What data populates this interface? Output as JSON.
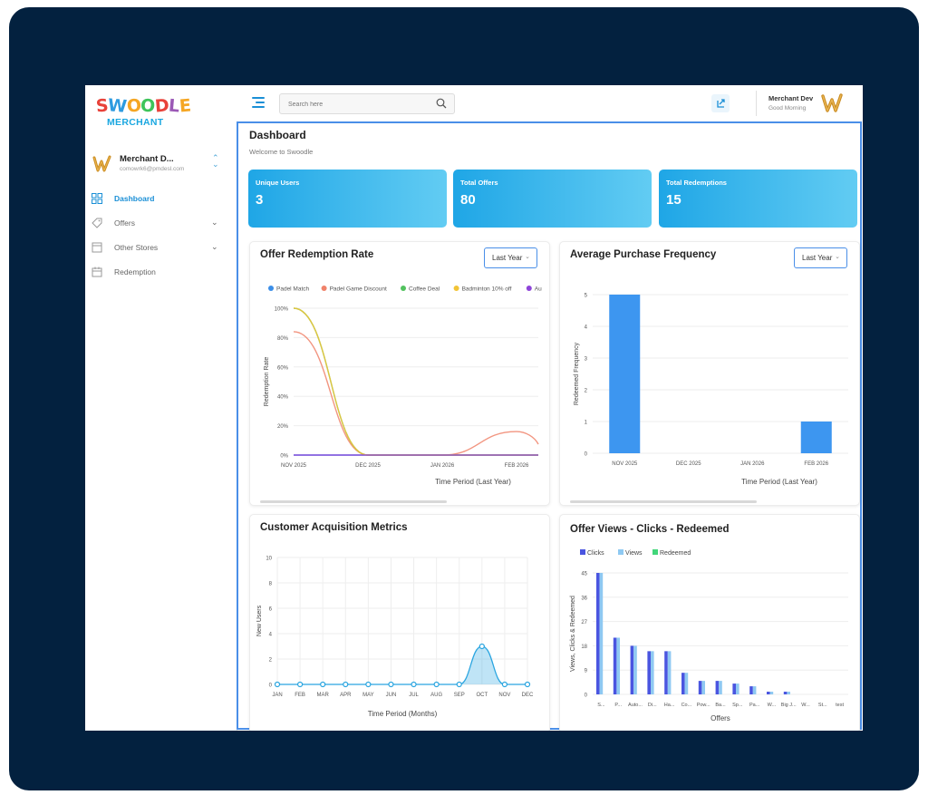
{
  "brand": {
    "logo_text": "SWOODLE",
    "logo_letters": [
      "S",
      "W",
      "O",
      "O",
      "D",
      "L",
      "E"
    ],
    "logo_colors": [
      "#e8423a",
      "#2d9be0",
      "#f5a623",
      "#3ec45a",
      "#e8423a",
      "#9b59b6",
      "#f5a623"
    ],
    "logo_sub": "MERCHANT"
  },
  "sidebar": {
    "profile": {
      "name": "Merchant D...",
      "email": "comowrk6@pmdesl.com"
    },
    "items": [
      {
        "label": "Dashboard",
        "icon": "dashboard-icon",
        "active": true,
        "expandable": false
      },
      {
        "label": "Offers",
        "icon": "tag-icon",
        "active": false,
        "expandable": true
      },
      {
        "label": "Other Stores",
        "icon": "store-icon",
        "active": false,
        "expandable": true
      },
      {
        "label": "Redemption",
        "icon": "calendar-icon",
        "active": false,
        "expandable": false
      }
    ]
  },
  "topbar": {
    "search_placeholder": "Search here",
    "user_name": "Merchant Dev",
    "greeting": "Good Morning"
  },
  "main": {
    "title": "Dashboard",
    "subtitle": "Welcome to Swoodle",
    "stats": [
      {
        "label": "Unique Users",
        "value": "3"
      },
      {
        "label": "Total Offers",
        "value": "80"
      },
      {
        "label": "Total Redemptions",
        "value": "15"
      }
    ]
  },
  "colors": {
    "accent": "#1a8fd6",
    "frame": "#03213f",
    "stat_from": "#1fa6e6",
    "stat_to": "#62ccf3"
  },
  "chart_data": [
    {
      "type": "line",
      "title": "Offer Redemption Rate",
      "filter": "Last Year",
      "xlabel": "Time Period (Last Year)",
      "ylabel": "Redemption Rate",
      "x": [
        "NOV 2025",
        "DEC 2025",
        "JAN 2026",
        "FEB 2026"
      ],
      "yticks": [
        "0%",
        "20%",
        "40%",
        "60%",
        "80%",
        "100%"
      ],
      "ylim": [
        0,
        100
      ],
      "legend": [
        "Padel Match",
        "Padel Game Discount",
        "Coffee Deal",
        "Badminton 10% off",
        "Au"
      ],
      "series": [
        {
          "name": "Padel Match",
          "color": "#3b8ee8",
          "values": [
            0,
            0,
            0,
            0
          ]
        },
        {
          "name": "Padel Game Discount",
          "color": "#f0826a",
          "values": [
            84,
            0,
            0,
            16
          ]
        },
        {
          "name": "Coffee Deal",
          "color": "#52c25e",
          "values": [
            100,
            0,
            0,
            0
          ]
        },
        {
          "name": "Badminton 10% off",
          "color": "#f2c436",
          "values": [
            100,
            0,
            0,
            0
          ]
        },
        {
          "name": "Au",
          "color": "#8e44d9",
          "values": [
            0,
            0,
            0,
            0
          ]
        }
      ]
    },
    {
      "type": "bar",
      "title": "Average Purchase Frequency",
      "filter": "Last Year",
      "xlabel": "Time Period (Last Year)",
      "ylabel": "Redeemed Frequency",
      "categories": [
        "NOV 2025",
        "DEC 2025",
        "JAN 2026",
        "FEB 2026"
      ],
      "values": [
        5,
        0,
        0,
        1
      ],
      "yticks": [
        "0",
        "1",
        "2",
        "3",
        "4",
        "5"
      ],
      "ylim": [
        0,
        5
      ],
      "color": "#3d96f0"
    },
    {
      "type": "area",
      "title": "Customer Acquisition Metrics",
      "xlabel": "Time Period (Months)",
      "ylabel": "New Users",
      "categories": [
        "JAN",
        "FEB",
        "MAR",
        "APR",
        "MAY",
        "JUN",
        "JUL",
        "AUG",
        "SEP",
        "OCT",
        "NOV",
        "DEC"
      ],
      "values": [
        0,
        0,
        0,
        0,
        0,
        0,
        0,
        0,
        0,
        3,
        0,
        0
      ],
      "yticks": [
        "0",
        "2",
        "4",
        "6",
        "8",
        "10"
      ],
      "ylim": [
        0,
        10
      ],
      "color": "#2aa5e0"
    },
    {
      "type": "bar",
      "title": "Offer Views - Clicks - Redeemed",
      "xlabel": "Offers",
      "ylabel": "Views, Clicks & Redeemed",
      "legend": [
        "Clicks",
        "Views",
        "Redeemed"
      ],
      "categories": [
        "S...",
        "P...",
        "Auto...",
        "Di...",
        "Ha...",
        "Co...",
        "Pow...",
        "Ba...",
        "Sp...",
        "Pa...",
        "W...",
        "Big J...",
        "W...",
        "St...",
        "test"
      ],
      "series": [
        {
          "name": "Clicks",
          "color": "#4a55e0",
          "values": [
            45,
            21,
            18,
            16,
            16,
            8,
            5,
            5,
            4,
            3,
            1,
            1,
            0,
            0,
            0
          ]
        },
        {
          "name": "Views",
          "color": "#8fc9f2",
          "values": [
            45,
            21,
            18,
            16,
            16,
            8,
            5,
            5,
            4,
            3,
            1,
            1,
            0,
            0,
            0
          ]
        },
        {
          "name": "Redeemed",
          "color": "#42d67a",
          "values": [
            0,
            0,
            0,
            0,
            0,
            0,
            0,
            0,
            0,
            0,
            0,
            0,
            0,
            0,
            0
          ]
        }
      ],
      "yticks": [
        "0",
        "9",
        "18",
        "27",
        "36",
        "45"
      ],
      "ylim": [
        0,
        45
      ]
    }
  ]
}
